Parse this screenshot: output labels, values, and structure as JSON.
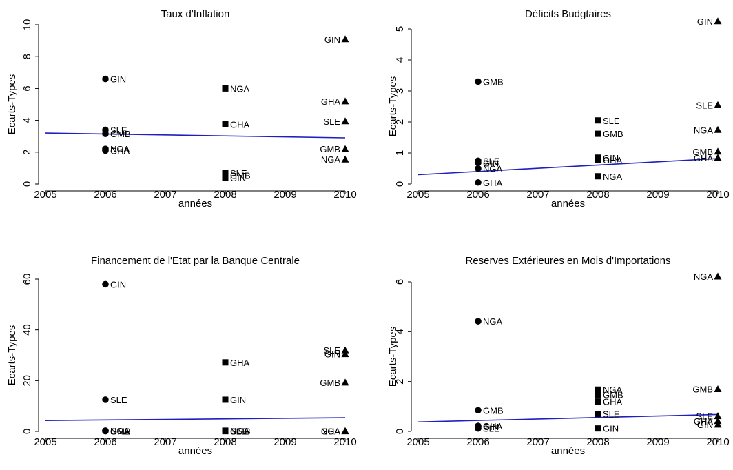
{
  "chart_data": [
    {
      "type": "scatter",
      "title": "Taux d'Inflation",
      "xlabel": "années",
      "ylabel": "Ecarts-Types",
      "xlim": [
        2005,
        2010
      ],
      "ylim": [
        0,
        10
      ],
      "xticks": [
        2005,
        2006,
        2007,
        2008,
        2009,
        2010
      ],
      "yticks": [
        0,
        2,
        4,
        6,
        8,
        10
      ],
      "points": [
        {
          "x": 2006,
          "y": 6.6,
          "label": "GIN",
          "marker": "circle"
        },
        {
          "x": 2006,
          "y": 3.4,
          "label": "SLE",
          "marker": "circle"
        },
        {
          "x": 2006,
          "y": 3.15,
          "label": "GMB",
          "marker": "circle"
        },
        {
          "x": 2006,
          "y": 2.2,
          "label": "NGA",
          "marker": "circle"
        },
        {
          "x": 2006,
          "y": 2.1,
          "label": "GHA",
          "marker": "circle"
        },
        {
          "x": 2008,
          "y": 6.0,
          "label": "NGA",
          "marker": "square"
        },
        {
          "x": 2008,
          "y": 3.75,
          "label": "GHA",
          "marker": "square"
        },
        {
          "x": 2008,
          "y": 0.7,
          "label": "SLE",
          "marker": "square"
        },
        {
          "x": 2008,
          "y": 0.55,
          "label": "GMB",
          "marker": "square"
        },
        {
          "x": 2008,
          "y": 0.4,
          "label": "GIN",
          "marker": "square"
        },
        {
          "x": 2010,
          "y": 9.1,
          "label": "GIN",
          "marker": "triangle"
        },
        {
          "x": 2010,
          "y": 5.2,
          "label": "GHA",
          "marker": "triangle"
        },
        {
          "x": 2010,
          "y": 3.95,
          "label": "SLE",
          "marker": "triangle"
        },
        {
          "x": 2010,
          "y": 2.2,
          "label": "GMB",
          "marker": "triangle"
        },
        {
          "x": 2010,
          "y": 1.55,
          "label": "NGA",
          "marker": "triangle"
        }
      ],
      "trend": {
        "x": [
          2005,
          2010
        ],
        "y": [
          3.2,
          2.9
        ],
        "color": "#1f1fbf"
      }
    },
    {
      "type": "scatter",
      "title": "Déficits Budgtaires",
      "xlabel": "années",
      "ylabel": "Ecarts-Types",
      "xlim": [
        2005,
        2010
      ],
      "ylim": [
        0,
        5
      ],
      "xticks": [
        2005,
        2006,
        2007,
        2008,
        2009,
        2010
      ],
      "yticks": [
        0,
        1,
        2,
        3,
        4,
        5
      ],
      "points": [
        {
          "x": 2006,
          "y": 3.3,
          "label": "GMB",
          "marker": "circle"
        },
        {
          "x": 2006,
          "y": 0.75,
          "label": "SLE",
          "marker": "circle"
        },
        {
          "x": 2006,
          "y": 0.68,
          "label": "GIN",
          "marker": "circle"
        },
        {
          "x": 2006,
          "y": 0.5,
          "label": "NGA",
          "marker": "circle"
        },
        {
          "x": 2006,
          "y": 0.05,
          "label": "GHA",
          "marker": "circle"
        },
        {
          "x": 2008,
          "y": 2.05,
          "label": "SLE",
          "marker": "square"
        },
        {
          "x": 2008,
          "y": 1.62,
          "label": "GMB",
          "marker": "square"
        },
        {
          "x": 2008,
          "y": 0.85,
          "label": "GIN",
          "marker": "square"
        },
        {
          "x": 2008,
          "y": 0.78,
          "label": "GHA",
          "marker": "square"
        },
        {
          "x": 2008,
          "y": 0.25,
          "label": "NGA",
          "marker": "square"
        },
        {
          "x": 2010,
          "y": 5.25,
          "label": "GIN",
          "marker": "triangle"
        },
        {
          "x": 2010,
          "y": 2.55,
          "label": "SLE",
          "marker": "triangle"
        },
        {
          "x": 2010,
          "y": 1.75,
          "label": "NGA",
          "marker": "triangle"
        },
        {
          "x": 2010,
          "y": 1.05,
          "label": "GMB",
          "marker": "triangle"
        },
        {
          "x": 2010,
          "y": 0.85,
          "label": "GHA",
          "marker": "triangle"
        }
      ],
      "trend": {
        "x": [
          2005,
          2010
        ],
        "y": [
          0.3,
          0.82
        ],
        "color": "#1f1fbf"
      }
    },
    {
      "type": "scatter",
      "title": "Financement de l'Etat par la Banque Centrale",
      "xlabel": "années",
      "ylabel": "Ecarts-Types",
      "xlim": [
        2005,
        2010
      ],
      "ylim": [
        0,
        60
      ],
      "xticks": [
        2005,
        2006,
        2007,
        2008,
        2009,
        2010
      ],
      "yticks": [
        0,
        20,
        40,
        60
      ],
      "points": [
        {
          "x": 2006,
          "y": 58.0,
          "label": "GIN",
          "marker": "circle"
        },
        {
          "x": 2006,
          "y": 12.5,
          "label": "SLE",
          "marker": "circle"
        },
        {
          "x": 2006,
          "y": 0.3,
          "label": "NGA",
          "marker": "circle"
        },
        {
          "x": 2006,
          "y": 0.2,
          "label": "GHA",
          "marker": "circle"
        },
        {
          "x": 2006,
          "y": 0.1,
          "label": "GMB",
          "marker": "circle"
        },
        {
          "x": 2008,
          "y": 27.2,
          "label": "GHA",
          "marker": "square"
        },
        {
          "x": 2008,
          "y": 12.5,
          "label": "GIN",
          "marker": "square"
        },
        {
          "x": 2008,
          "y": 0.3,
          "label": "NGA",
          "marker": "square"
        },
        {
          "x": 2008,
          "y": 0.2,
          "label": "SLE",
          "marker": "square"
        },
        {
          "x": 2008,
          "y": 0.1,
          "label": "GMB",
          "marker": "square"
        },
        {
          "x": 2010,
          "y": 32.0,
          "label": "SLE",
          "marker": "triangle"
        },
        {
          "x": 2010,
          "y": 30.5,
          "label": "GIN",
          "marker": "triangle"
        },
        {
          "x": 2010,
          "y": 19.3,
          "label": "GMB",
          "marker": "triangle"
        },
        {
          "x": 2010,
          "y": 0.2,
          "label": "NGA",
          "marker": "triangle"
        },
        {
          "x": 2010,
          "y": 0.1,
          "label": "GHA",
          "marker": "triangle"
        }
      ],
      "trend": {
        "x": [
          2005,
          2010
        ],
        "y": [
          4.3,
          5.4
        ],
        "color": "#1f1fbf"
      }
    },
    {
      "type": "scatter",
      "title": "Reserves Extérieures en Mois d'Importations",
      "xlabel": "années",
      "ylabel": "Ecarts-Types",
      "xlim": [
        2005,
        2010
      ],
      "ylim": [
        0,
        6
      ],
      "xticks": [
        2005,
        2006,
        2007,
        2008,
        2009,
        2010
      ],
      "yticks": [
        0,
        2,
        4,
        6
      ],
      "points": [
        {
          "x": 2006,
          "y": 4.42,
          "label": "NGA",
          "marker": "circle"
        },
        {
          "x": 2006,
          "y": 0.85,
          "label": "GMB",
          "marker": "circle"
        },
        {
          "x": 2006,
          "y": 0.22,
          "label": "GHA",
          "marker": "circle"
        },
        {
          "x": 2006,
          "y": 0.2,
          "label": "GIN",
          "marker": "circle"
        },
        {
          "x": 2006,
          "y": 0.12,
          "label": "SLE",
          "marker": "circle"
        },
        {
          "x": 2008,
          "y": 1.68,
          "label": "NGA",
          "marker": "square"
        },
        {
          "x": 2008,
          "y": 1.48,
          "label": "GMB",
          "marker": "square"
        },
        {
          "x": 2008,
          "y": 1.2,
          "label": "GHA",
          "marker": "square"
        },
        {
          "x": 2008,
          "y": 0.7,
          "label": "SLE",
          "marker": "square"
        },
        {
          "x": 2008,
          "y": 0.12,
          "label": "GIN",
          "marker": "square"
        },
        {
          "x": 2010,
          "y": 6.22,
          "label": "NGA",
          "marker": "triangle"
        },
        {
          "x": 2010,
          "y": 1.7,
          "label": "GMB",
          "marker": "triangle"
        },
        {
          "x": 2010,
          "y": 0.62,
          "label": "SLE",
          "marker": "triangle"
        },
        {
          "x": 2010,
          "y": 0.42,
          "label": "GHA",
          "marker": "triangle"
        },
        {
          "x": 2010,
          "y": 0.28,
          "label": "GIN",
          "marker": "triangle"
        }
      ],
      "trend": {
        "x": [
          2005,
          2010
        ],
        "y": [
          0.38,
          0.68
        ],
        "color": "#1f1fbf"
      }
    }
  ]
}
